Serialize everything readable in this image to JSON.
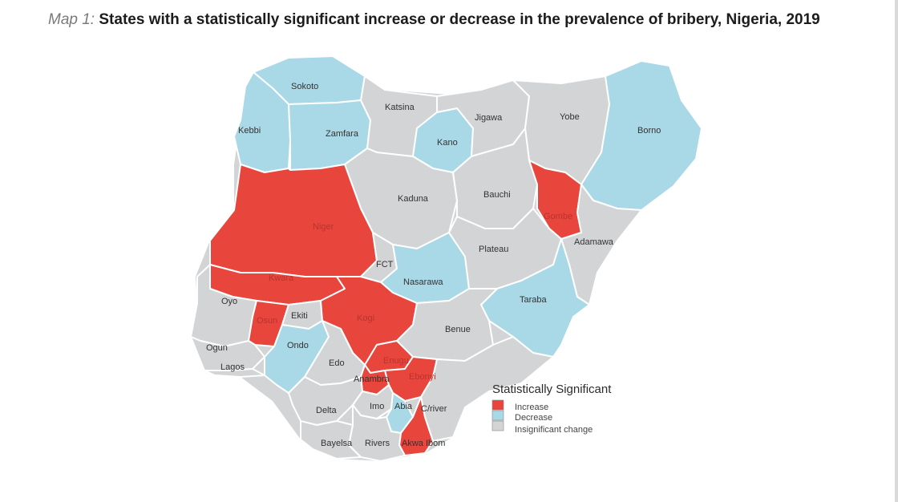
{
  "caption": {
    "prefix": "Map 1:",
    "title": "States with a statistically significant increase or decrease in the prevalence of bribery, Nigeria, 2019"
  },
  "colors": {
    "increase": "#e8453c",
    "decrease": "#a9d8e6",
    "insignificant": "#d3d4d6"
  },
  "states": [
    {
      "name": "Sokoto",
      "status": "decrease"
    },
    {
      "name": "Kebbi",
      "status": "decrease"
    },
    {
      "name": "Zamfara",
      "status": "decrease"
    },
    {
      "name": "Katsina",
      "status": "insignificant"
    },
    {
      "name": "Jigawa",
      "status": "insignificant"
    },
    {
      "name": "Yobe",
      "status": "insignificant"
    },
    {
      "name": "Borno",
      "status": "decrease"
    },
    {
      "name": "Kano",
      "status": "decrease"
    },
    {
      "name": "Kaduna",
      "status": "insignificant"
    },
    {
      "name": "Bauchi",
      "status": "insignificant"
    },
    {
      "name": "Gombe",
      "status": "increase"
    },
    {
      "name": "Adamawa",
      "status": "insignificant"
    },
    {
      "name": "Niger",
      "status": "increase"
    },
    {
      "name": "FCT",
      "status": "insignificant"
    },
    {
      "name": "Nasarawa",
      "status": "decrease"
    },
    {
      "name": "Plateau",
      "status": "insignificant"
    },
    {
      "name": "Taraba",
      "status": "decrease"
    },
    {
      "name": "Kwara",
      "status": "increase"
    },
    {
      "name": "Oyo",
      "status": "insignificant"
    },
    {
      "name": "Osun",
      "status": "increase"
    },
    {
      "name": "Ekiti",
      "status": "insignificant"
    },
    {
      "name": "Kogi",
      "status": "increase"
    },
    {
      "name": "Benue",
      "status": "insignificant"
    },
    {
      "name": "Ogun",
      "status": "insignificant"
    },
    {
      "name": "Lagos",
      "status": "insignificant"
    },
    {
      "name": "Ondo",
      "status": "decrease"
    },
    {
      "name": "Edo",
      "status": "insignificant"
    },
    {
      "name": "Enugu",
      "status": "increase"
    },
    {
      "name": "Anambra",
      "status": "increase"
    },
    {
      "name": "Ebonyi",
      "status": "increase"
    },
    {
      "name": "Delta",
      "status": "insignificant"
    },
    {
      "name": "Imo",
      "status": "insignificant"
    },
    {
      "name": "Abia",
      "status": "decrease"
    },
    {
      "name": "C/river",
      "status": "insignificant"
    },
    {
      "name": "Bayelsa",
      "status": "insignificant"
    },
    {
      "name": "Rivers",
      "status": "insignificant"
    },
    {
      "name": "Akwa Ibom",
      "status": "increase"
    }
  ],
  "legend": {
    "title": "Statistically Significant",
    "items": [
      {
        "label": "Increase",
        "status": "increase"
      },
      {
        "label": "Decrease",
        "status": "decrease"
      },
      {
        "label": "Insignificant change",
        "status": "insignificant"
      }
    ]
  }
}
